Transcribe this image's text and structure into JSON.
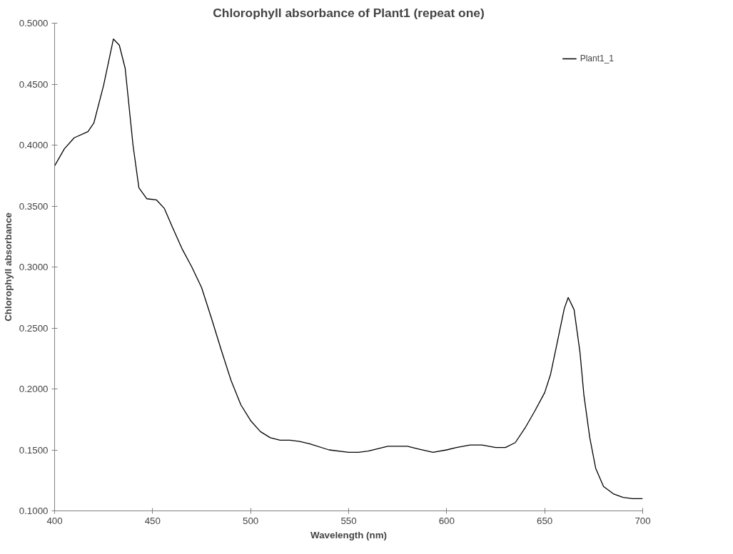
{
  "chart_data": {
    "type": "line",
    "title": "Chlorophyll absorbance of Plant1 (repeat one)",
    "xlabel": "Wavelength (nm)",
    "ylabel": "Chlorophyll absorbance",
    "xlim": [
      400,
      700
    ],
    "xticks": [
      400,
      450,
      500,
      550,
      600,
      650,
      700
    ],
    "ylim": [
      0.1,
      0.5
    ],
    "yticks": [
      {
        "value": 0.1,
        "label": "0.1000"
      },
      {
        "value": 0.15,
        "label": "0.1500"
      },
      {
        "value": 0.2,
        "label": "0.2000"
      },
      {
        "value": 0.25,
        "label": "0.2500"
      },
      {
        "value": 0.3,
        "label": "0.3000"
      },
      {
        "value": 0.35,
        "label": "0.3500"
      },
      {
        "value": 0.4,
        "label": "0.4000"
      },
      {
        "value": 0.45,
        "label": "0.4500"
      },
      {
        "value": 0.5,
        "label": "0.5000"
      }
    ],
    "grid": false,
    "legend": "top right",
    "line_style": "solid",
    "marker": "none",
    "series": [
      {
        "name": "Plant1_1",
        "color": "#000000",
        "x": [
          400,
          405,
          410,
          417,
          420,
          425,
          430,
          433,
          436,
          440,
          443,
          447,
          452,
          456,
          460,
          465,
          470,
          475,
          480,
          485,
          490,
          495,
          500,
          505,
          510,
          515,
          520,
          525,
          530,
          540,
          550,
          555,
          560,
          570,
          580,
          585,
          593,
          600,
          605,
          612,
          618,
          625,
          630,
          635,
          640,
          645,
          650,
          653,
          656,
          660,
          662,
          665,
          668,
          670,
          673,
          676,
          680,
          685,
          690,
          695,
          700
        ],
        "values": [
          0.383,
          0.397,
          0.406,
          0.411,
          0.418,
          0.449,
          0.487,
          0.482,
          0.463,
          0.4,
          0.365,
          0.356,
          0.355,
          0.348,
          0.333,
          0.315,
          0.3,
          0.283,
          0.258,
          0.232,
          0.207,
          0.187,
          0.174,
          0.165,
          0.16,
          0.158,
          0.158,
          0.157,
          0.155,
          0.15,
          0.148,
          0.148,
          0.149,
          0.153,
          0.153,
          0.151,
          0.148,
          0.15,
          0.152,
          0.154,
          0.154,
          0.152,
          0.152,
          0.156,
          0.168,
          0.182,
          0.197,
          0.212,
          0.235,
          0.266,
          0.275,
          0.265,
          0.23,
          0.195,
          0.16,
          0.135,
          0.12,
          0.114,
          0.111,
          0.11,
          0.11
        ]
      }
    ]
  }
}
